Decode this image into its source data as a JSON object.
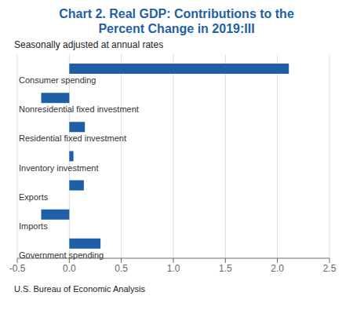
{
  "chart_data": {
    "type": "bar",
    "orientation": "horizontal",
    "title": "Chart 2. Real GDP: Contributions to the\nPercent Change in 2019:III",
    "subtitle": "Seasonally adjusted at annual rates",
    "footnote": "U.S. Bureau of Economic Analysis",
    "categories": [
      "Consumer spending",
      "Nonresidential fixed investment",
      "Residential fixed investment",
      "Inventory investment",
      "Exports",
      "Imports",
      "Government spending"
    ],
    "values": [
      2.11,
      -0.27,
      0.15,
      0.04,
      0.14,
      -0.27,
      0.3
    ],
    "color": "#1F5FA6",
    "xlim": [
      -0.5,
      2.5
    ],
    "xticks": [
      -0.5,
      {
        "value": 0,
        "label": "0.0"
      },
      0.5,
      {
        "value": 1,
        "label": "1.0"
      },
      1.5,
      {
        "value": 2,
        "label": "2.0"
      },
      2.5
    ],
    "grid": true
  }
}
